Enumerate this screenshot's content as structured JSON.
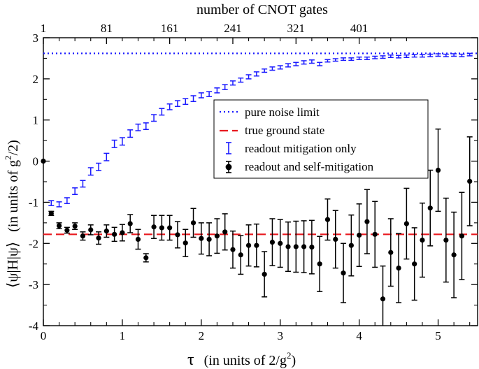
{
  "chart_data": {
    "type": "scatter",
    "title": "",
    "xlabel_symbol": "τ",
    "xlabel_text": "(in units of 2/g",
    "xlabel_sup": "2",
    "xlabel_close": ")",
    "ylabel_symbol": "⟨ψ|H|ψ⟩",
    "ylabel_text": "(in units of g",
    "ylabel_sup": "2",
    "ylabel_close": "/2)",
    "x2label": "number of CNOT gates",
    "xlim": [
      0,
      5.5
    ],
    "ylim": [
      -4,
      3
    ],
    "xticks": [
      0,
      1,
      2,
      3,
      4,
      5
    ],
    "xtick_labels": [
      "0",
      "1",
      "2",
      "3",
      "4",
      "5"
    ],
    "yticks": [
      -4,
      -3,
      -2,
      -1,
      0,
      1,
      2,
      3
    ],
    "ytick_labels": [
      "-4",
      "-3",
      "-2",
      "-1",
      "0",
      "1",
      "2",
      "3"
    ],
    "x2ticks_tau": [
      0,
      0.8,
      1.6,
      2.4,
      3.2,
      4.0
    ],
    "x2tick_labels": [
      "1",
      "81",
      "161",
      "241",
      "321",
      "401"
    ],
    "pure_noise_limit": 2.62,
    "true_ground_state": -1.78,
    "legend": [
      {
        "label": "pure noise limit",
        "style": "dotted",
        "color": "#1a1aff"
      },
      {
        "label": "true ground state",
        "style": "dashed",
        "color": "#e8191f"
      },
      {
        "label": "readout mitigation only",
        "style": "errorbar",
        "color": "#1a1aff"
      },
      {
        "label": "readout and self-mitigation",
        "style": "errorbar-point",
        "color": "#000000"
      }
    ],
    "series": [
      {
        "name": "readout mitigation only",
        "color": "#1a1aff",
        "x": [
          0.1,
          0.2,
          0.3,
          0.4,
          0.5,
          0.6,
          0.7,
          0.8,
          0.9,
          1.0,
          1.1,
          1.2,
          1.3,
          1.4,
          1.5,
          1.6,
          1.7,
          1.8,
          1.9,
          2.0,
          2.1,
          2.2,
          2.3,
          2.4,
          2.5,
          2.6,
          2.7,
          2.8,
          2.9,
          3.0,
          3.1,
          3.2,
          3.3,
          3.4,
          3.5,
          3.6,
          3.7,
          3.8,
          3.9,
          4.0,
          4.1,
          4.2,
          4.3,
          4.4,
          4.5,
          4.6,
          4.7,
          4.8,
          4.9,
          5.0,
          5.1,
          5.2,
          5.3,
          5.4
        ],
        "y": [
          -1.02,
          -1.05,
          -0.96,
          -0.73,
          -0.55,
          -0.25,
          -0.14,
          0.1,
          0.42,
          0.48,
          0.67,
          0.82,
          0.85,
          1.05,
          1.2,
          1.32,
          1.4,
          1.45,
          1.52,
          1.6,
          1.63,
          1.72,
          1.8,
          1.9,
          1.97,
          2.05,
          2.12,
          2.2,
          2.25,
          2.28,
          2.33,
          2.36,
          2.4,
          2.42,
          2.36,
          2.44,
          2.46,
          2.48,
          2.48,
          2.5,
          2.5,
          2.52,
          2.53,
          2.55,
          2.54,
          2.55,
          2.56,
          2.56,
          2.57,
          2.58,
          2.57,
          2.58,
          2.57,
          2.59
        ],
        "err": [
          0.06,
          0.06,
          0.07,
          0.08,
          0.08,
          0.09,
          0.09,
          0.09,
          0.09,
          0.09,
          0.09,
          0.08,
          0.08,
          0.08,
          0.08,
          0.07,
          0.07,
          0.07,
          0.07,
          0.06,
          0.06,
          0.06,
          0.06,
          0.05,
          0.05,
          0.05,
          0.05,
          0.04,
          0.04,
          0.04,
          0.04,
          0.04,
          0.04,
          0.04,
          0.04,
          0.03,
          0.03,
          0.03,
          0.03,
          0.03,
          0.03,
          0.03,
          0.03,
          0.03,
          0.03,
          0.03,
          0.03,
          0.03,
          0.03,
          0.03,
          0.03,
          0.03,
          0.03,
          0.03
        ]
      },
      {
        "name": "readout and self-mitigation",
        "color": "#000000",
        "x": [
          0.0,
          0.1,
          0.2,
          0.3,
          0.4,
          0.5,
          0.6,
          0.7,
          0.8,
          0.9,
          1.0,
          1.1,
          1.2,
          1.3,
          1.4,
          1.5,
          1.6,
          1.7,
          1.8,
          1.9,
          2.0,
          2.1,
          2.2,
          2.3,
          2.4,
          2.5,
          2.6,
          2.7,
          2.8,
          2.9,
          3.0,
          3.1,
          3.2,
          3.3,
          3.4,
          3.5,
          3.6,
          3.7,
          3.8,
          3.9,
          4.0,
          4.1,
          4.2,
          4.3,
          4.4,
          4.5,
          4.6,
          4.7,
          4.8,
          4.9,
          5.0,
          5.1,
          5.2,
          5.3,
          5.4
        ],
        "y": [
          0.0,
          -1.27,
          -1.57,
          -1.68,
          -1.58,
          -1.82,
          -1.67,
          -1.87,
          -1.7,
          -1.78,
          -1.74,
          -1.52,
          -1.9,
          -2.35,
          -1.6,
          -1.62,
          -1.62,
          -1.79,
          -1.99,
          -1.5,
          -1.88,
          -1.9,
          -1.82,
          -1.72,
          -2.15,
          -2.28,
          -2.05,
          -2.05,
          -2.75,
          -1.97,
          -2.0,
          -2.08,
          -2.08,
          -2.08,
          -2.09,
          -2.5,
          -1.42,
          -1.9,
          -2.72,
          -2.05,
          -1.8,
          -1.47,
          -1.78,
          -3.35,
          -2.22,
          -2.6,
          -1.52,
          -2.5,
          -1.92,
          -1.14,
          -0.22,
          -1.92,
          -2.28,
          -1.82,
          -0.49
        ],
        "err": [
          0.0,
          0.05,
          0.07,
          0.07,
          0.08,
          0.1,
          0.12,
          0.15,
          0.15,
          0.17,
          0.2,
          0.22,
          0.24,
          0.1,
          0.28,
          0.3,
          0.3,
          0.32,
          0.33,
          0.35,
          0.38,
          0.4,
          0.42,
          0.44,
          0.45,
          0.47,
          0.5,
          0.52,
          0.55,
          0.57,
          0.58,
          0.6,
          0.62,
          0.63,
          0.65,
          0.67,
          0.5,
          0.7,
          0.72,
          0.74,
          0.76,
          0.78,
          0.8,
          0.8,
          0.82,
          0.84,
          0.86,
          0.88,
          0.9,
          0.92,
          1.0,
          1.02,
          1.04,
          1.06,
          1.08
        ]
      }
    ]
  }
}
